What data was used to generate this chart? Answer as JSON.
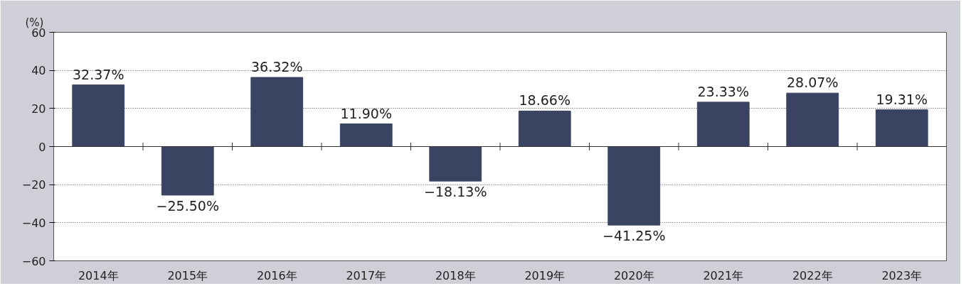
{
  "chart_data": {
    "type": "bar",
    "ylabel": "(%)",
    "categories": [
      "2014年",
      "2015年",
      "2016年",
      "2017年",
      "2018年",
      "2019年",
      "2020年",
      "2021年",
      "2022年",
      "2023年"
    ],
    "values": [
      32.37,
      -25.5,
      36.32,
      11.9,
      -18.13,
      18.66,
      -41.25,
      23.33,
      28.07,
      19.31
    ],
    "value_labels": [
      "32.37%",
      "−25.50%",
      "36.32%",
      "11.90%",
      "−18.13%",
      "18.66%",
      "−41.25%",
      "23.33%",
      "28.07%",
      "19.31%"
    ],
    "color": "#3a4462",
    "ylim": [
      -60,
      60
    ],
    "yticks": [
      {
        "value": -60,
        "label": "−60"
      },
      {
        "value": -40,
        "label": "−40"
      },
      {
        "value": -20,
        "label": "−20"
      },
      0,
      20,
      40,
      60
    ],
    "grid": "y"
  }
}
